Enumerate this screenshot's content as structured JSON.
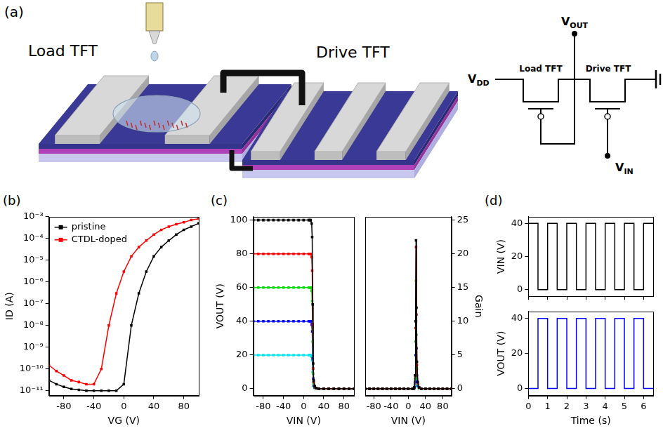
{
  "diagram": {
    "panel": "(a)",
    "device": {
      "load": "Load TFT",
      "drive": "Drive TFT"
    },
    "circuit": {
      "supply": "VDD",
      "output": "VOUT",
      "input": "VIN",
      "load": "Load TFT",
      "drive": "Drive TFT"
    }
  },
  "chart_data": [
    {
      "panel": "(b)",
      "type": "line",
      "x_label": "VG (V)",
      "y_label": "ID (A)",
      "x": [
        -100,
        -90,
        -80,
        -70,
        -60,
        -50,
        -40,
        -30,
        -20,
        -10,
        0,
        10,
        20,
        30,
        40,
        50,
        60,
        70,
        80,
        90,
        100
      ],
      "series": [
        {
          "name": "pristine",
          "color": "#000000",
          "marker": "square",
          "values": [
            3e-11,
            2e-11,
            1.5e-11,
            1.2e-11,
            1.1e-11,
            1e-11,
            1e-11,
            1e-11,
            1e-11,
            1e-11,
            2e-11,
            1e-08,
            3e-07,
            3e-06,
            1.5e-05,
            4e-05,
            8e-05,
            0.00015,
            0.00025,
            0.00035,
            0.0005
          ]
        },
        {
          "name": "CTDL-doped",
          "color": "#ff0000",
          "marker": "square",
          "values": [
            1.5e-10,
            8e-11,
            5e-11,
            3e-11,
            2.5e-11,
            2e-11,
            2e-11,
            1e-10,
            1e-08,
            3e-07,
            3e-06,
            1.5e-05,
            4e-05,
            8e-05,
            0.00015,
            0.00025,
            0.00035,
            0.00045,
            0.00055,
            0.0007,
            0.0008
          ]
        }
      ],
      "xlim": [
        -100,
        100
      ],
      "xticks": [
        -80,
        -40,
        0,
        40,
        80
      ],
      "ylim": [
        6e-12,
        0.001
      ],
      "yticks": [
        {
          "value": 1e-11,
          "label": "10⁻¹¹"
        },
        {
          "value": 1e-10,
          "label": "10⁻¹⁰"
        },
        {
          "value": 1e-09,
          "label": "10⁻⁹"
        },
        {
          "value": 1e-08,
          "label": "10⁻⁸"
        },
        {
          "value": 1e-07,
          "label": "10⁻⁷"
        },
        {
          "value": 1e-06,
          "label": "10⁻⁶"
        },
        {
          "value": 1e-05,
          "label": "10⁻⁵"
        },
        {
          "value": 0.0001,
          "label": "10⁻⁴"
        },
        {
          "value": 0.001,
          "label": "10⁻³"
        }
      ],
      "log": "y",
      "legend": "upper left",
      "grid": false
    },
    {
      "panel": "(c)",
      "type": "line",
      "x_label": "VIN (V)",
      "y_label": "VOUT (V)",
      "x": [
        -100,
        -90,
        -80,
        -70,
        -60,
        -50,
        -40,
        -30,
        -20,
        -10,
        0,
        10,
        12,
        14,
        16,
        17,
        18,
        19,
        20,
        22,
        25,
        30,
        40,
        50,
        60,
        70,
        80,
        90,
        100
      ],
      "series": [
        {
          "color": "#000000",
          "marker": "square",
          "values": [
            100,
            100,
            100,
            100,
            100,
            100,
            100,
            100,
            100,
            100,
            100,
            100,
            100,
            100,
            98,
            90,
            50,
            15,
            5,
            1.5,
            0.5,
            0,
            0,
            0,
            0,
            0,
            0,
            0,
            0
          ]
        },
        {
          "color": "#ff0000",
          "marker": "square",
          "values": [
            80,
            80,
            80,
            80,
            80,
            80,
            80,
            80,
            80,
            80,
            80,
            80,
            80,
            80,
            78,
            70,
            38,
            12,
            4,
            1.2,
            0.4,
            0,
            0,
            0,
            0,
            0,
            0,
            0,
            0
          ]
        },
        {
          "color": "#00dd00",
          "marker": "square",
          "values": [
            60,
            60,
            60,
            60,
            60,
            60,
            60,
            60,
            60,
            60,
            60,
            60,
            60,
            60,
            58,
            52,
            28,
            9,
            3,
            1,
            0.3,
            0,
            0,
            0,
            0,
            0,
            0,
            0,
            0
          ]
        },
        {
          "color": "#0000ff",
          "marker": "square",
          "values": [
            40,
            40,
            40,
            40,
            40,
            40,
            40,
            40,
            40,
            40,
            40,
            40,
            40,
            40,
            38,
            34,
            18,
            6,
            2,
            0.7,
            0.2,
            0,
            0,
            0,
            0,
            0,
            0,
            0,
            0
          ]
        },
        {
          "color": "#00e5ee",
          "marker": "square",
          "values": [
            20,
            20,
            20,
            20,
            20,
            20,
            20,
            20,
            20,
            20,
            20,
            20,
            20,
            20,
            19,
            17,
            10,
            4,
            1.5,
            0.5,
            0.2,
            0,
            0,
            0,
            0,
            0,
            0,
            0,
            0
          ]
        }
      ],
      "xlim": [
        -100,
        100
      ],
      "xticks": [
        -80,
        -40,
        0,
        40,
        80
      ],
      "ylim": [
        -4,
        102
      ],
      "yticks": [
        0,
        20,
        40,
        60,
        80,
        100
      ],
      "grid": false
    },
    {
      "type": "line",
      "x_label": "VIN (V)",
      "y2_label": "Gain",
      "x": [
        -100,
        -90,
        -80,
        -70,
        -60,
        -50,
        -40,
        -30,
        -20,
        -10,
        0,
        10,
        12,
        14,
        16,
        17,
        18,
        19,
        20,
        22,
        25,
        30,
        40,
        50,
        60,
        70,
        80,
        90,
        100
      ],
      "series": [
        {
          "color": "#000000",
          "marker": "square",
          "axis": "y2",
          "values": [
            0,
            0,
            0,
            0,
            0,
            0,
            0,
            0,
            0,
            0,
            0,
            0,
            0,
            0.2,
            2,
            10,
            22,
            12,
            4,
            1,
            0.2,
            0,
            0,
            0,
            0,
            0,
            0,
            0,
            0
          ]
        },
        {
          "color": "#ff0000",
          "marker": "square",
          "axis": "y2",
          "values": [
            0,
            0,
            0,
            0,
            0,
            0,
            0,
            0,
            0,
            0,
            0,
            0,
            0,
            0.2,
            2,
            9,
            21,
            11,
            3.5,
            0.8,
            0.2,
            0,
            0,
            0,
            0,
            0,
            0,
            0,
            0
          ]
        },
        {
          "color": "#00dd00",
          "marker": "square",
          "axis": "y2",
          "values": [
            0,
            0,
            0,
            0,
            0,
            0,
            0,
            0,
            0,
            0,
            0,
            0,
            0,
            0.2,
            1.5,
            7,
            16,
            8,
            3,
            0.7,
            0.1,
            0,
            0,
            0,
            0,
            0,
            0,
            0,
            0
          ]
        },
        {
          "color": "#0000ff",
          "marker": "square",
          "axis": "y2",
          "values": [
            0,
            0,
            0,
            0,
            0,
            0,
            0,
            0,
            0,
            0,
            0,
            0,
            0,
            0.1,
            1,
            5,
            10,
            6,
            2,
            0.5,
            0.1,
            0,
            0,
            0,
            0,
            0,
            0,
            0,
            0
          ]
        },
        {
          "color": "#00e5ee",
          "marker": "square",
          "axis": "y2",
          "values": [
            0,
            0,
            0,
            0,
            0,
            0,
            0,
            0,
            0,
            0,
            0,
            0,
            0,
            0.1,
            0.5,
            1.5,
            3,
            2,
            1,
            0.3,
            0.1,
            0,
            0,
            0,
            0,
            0,
            0,
            0,
            0
          ]
        }
      ],
      "xlim": [
        -100,
        100
      ],
      "xticks": [
        -80,
        -40,
        0,
        40,
        80
      ],
      "y2lim": [
        -1,
        25.5
      ],
      "y2ticks": [
        0,
        5,
        10,
        15,
        20,
        25
      ],
      "grid": false
    },
    {
      "panel": "(d)",
      "type": "line",
      "y_label": "VIN (V)",
      "x": [
        0,
        0.5,
        0.5,
        1,
        1,
        1.5,
        1.5,
        2,
        2,
        2.5,
        2.5,
        3,
        3,
        3.5,
        3.5,
        4,
        4,
        4.5,
        4.5,
        5,
        5,
        5.5,
        5.5,
        6,
        6,
        6.5
      ],
      "series": [
        {
          "color": "#000000",
          "values": [
            40,
            40,
            0,
            0,
            40,
            40,
            0,
            0,
            40,
            40,
            0,
            0,
            40,
            40,
            0,
            0,
            40,
            40,
            0,
            0,
            40,
            40,
            0,
            0,
            40,
            40
          ]
        }
      ],
      "xlim": [
        0,
        6.5
      ],
      "xticks": [
        0,
        1,
        2,
        3,
        4,
        5,
        6
      ],
      "ylim": [
        -4,
        44
      ],
      "yticks": [
        0,
        20,
        40
      ],
      "tick_labels": "y",
      "grid": false
    },
    {
      "type": "line",
      "x_label": "Time (s)",
      "y_label": "VOUT (V)",
      "x": [
        0,
        0.5,
        0.5,
        1,
        1,
        1.5,
        1.5,
        2,
        2,
        2.5,
        2.5,
        3,
        3,
        3.5,
        3.5,
        4,
        4,
        4.5,
        4.5,
        5,
        5,
        5.5,
        5.5,
        6,
        6,
        6.5
      ],
      "series": [
        {
          "color": "#0000ff",
          "values": [
            0,
            0,
            40,
            40,
            0,
            0,
            40,
            40,
            0,
            0,
            40,
            40,
            0,
            0,
            40,
            40,
            0,
            0,
            40,
            40,
            0,
            0,
            40,
            40,
            0,
            0
          ]
        }
      ],
      "xlim": [
        0,
        6.5
      ],
      "xticks": [
        0,
        1,
        2,
        3,
        4,
        5,
        6
      ],
      "ylim": [
        -4,
        44
      ],
      "yticks": [
        0,
        20,
        40
      ],
      "grid": false
    }
  ]
}
